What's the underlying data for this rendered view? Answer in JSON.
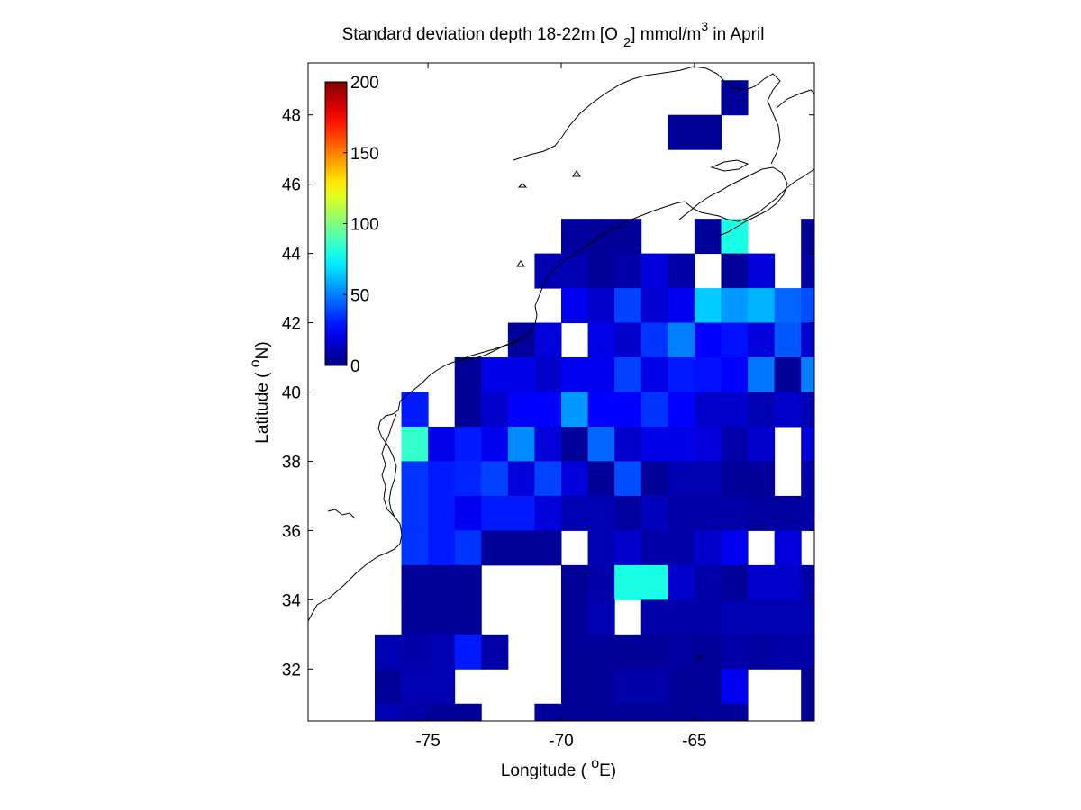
{
  "chart_data": {
    "type": "heatmap",
    "title": {
      "prefix": "Standard deviation depth 18-22m [O",
      "subscript": "2",
      "middle": "] mmol/m",
      "superscript": "3",
      "suffix": " in April"
    },
    "xlabel": {
      "prefix": "Longitude ( ",
      "degree": "o",
      "unit": "E)"
    },
    "ylabel": {
      "prefix": "Latitude ( ",
      "degree": "o",
      "unit": "N)"
    },
    "xlim": [
      -79.5,
      -60.5
    ],
    "ylim": [
      30.5,
      49.5
    ],
    "x_ticks": [
      {
        "value": -75,
        "label": "-75"
      },
      {
        "value": -70,
        "label": "-70"
      },
      {
        "value": -65,
        "label": "-65"
      }
    ],
    "y_ticks": [
      {
        "value": 32,
        "label": "32"
      },
      {
        "value": 34,
        "label": "34"
      },
      {
        "value": 36,
        "label": "36"
      },
      {
        "value": 38,
        "label": "38"
      },
      {
        "value": 40,
        "label": "40"
      },
      {
        "value": 42,
        "label": "42"
      },
      {
        "value": 44,
        "label": "44"
      },
      {
        "value": 46,
        "label": "46"
      },
      {
        "value": 48,
        "label": "48"
      }
    ],
    "colorbar": {
      "range": [
        0,
        200
      ],
      "colormap": "jet",
      "placement": "top-left inside axes",
      "ticks": [
        {
          "value": 0,
          "label": "0"
        },
        {
          "value": 50,
          "label": "50"
        },
        {
          "value": 100,
          "label": "100"
        },
        {
          "value": 150,
          "label": "150"
        },
        {
          "value": 200,
          "label": "200"
        }
      ]
    },
    "grid": false,
    "cell_size_degrees": 1,
    "lon_centers": [
      -79.5,
      -78.5,
      -77.5,
      -76.5,
      -75.5,
      -74.5,
      -73.5,
      -72.5,
      -71.5,
      -70.5,
      -69.5,
      -68.5,
      -67.5,
      -66.5,
      -65.5,
      -64.5,
      -63.5,
      -62.5,
      -61.5,
      -60.5
    ],
    "lat_centers": [
      48.5,
      47.5,
      44.5,
      43.5,
      42.5,
      41.5,
      40.5,
      39.5,
      38.5,
      37.5,
      36.5,
      35.5,
      34.5,
      33.5,
      32.5,
      31.5,
      30.5
    ],
    "rows": [
      [
        null,
        null,
        null,
        null,
        null,
        null,
        null,
        null,
        null,
        null,
        null,
        null,
        null,
        null,
        null,
        null,
        5,
        null,
        null,
        null
      ],
      [
        null,
        null,
        null,
        null,
        null,
        null,
        null,
        null,
        null,
        null,
        null,
        null,
        null,
        null,
        5,
        5,
        null,
        null,
        null,
        null
      ],
      [
        null,
        null,
        null,
        null,
        null,
        null,
        null,
        null,
        null,
        null,
        6,
        5,
        5,
        null,
        null,
        5,
        80,
        null,
        null,
        4
      ],
      [
        null,
        null,
        null,
        null,
        null,
        null,
        null,
        null,
        null,
        10,
        10,
        5,
        8,
        18,
        8,
        null,
        5,
        18,
        null,
        7
      ],
      [
        null,
        null,
        null,
        null,
        null,
        null,
        null,
        null,
        null,
        null,
        22,
        15,
        38,
        16,
        22,
        65,
        55,
        60,
        45,
        40
      ],
      [
        null,
        null,
        null,
        null,
        null,
        null,
        null,
        null,
        5,
        18,
        null,
        20,
        15,
        35,
        50,
        25,
        28,
        18,
        42,
        15
      ],
      [
        null,
        null,
        null,
        null,
        null,
        null,
        5,
        20,
        20,
        15,
        22,
        22,
        38,
        20,
        30,
        28,
        25,
        48,
        5,
        50
      ],
      [
        null,
        null,
        null,
        null,
        30,
        null,
        5,
        15,
        25,
        25,
        55,
        25,
        25,
        35,
        25,
        15,
        15,
        10,
        15,
        10
      ],
      [
        null,
        null,
        null,
        null,
        85,
        20,
        30,
        22,
        52,
        18,
        5,
        45,
        15,
        20,
        20,
        18,
        8,
        15,
        null,
        18
      ],
      [
        null,
        null,
        null,
        null,
        35,
        30,
        32,
        38,
        18,
        38,
        18,
        5,
        40,
        5,
        10,
        10,
        5,
        5,
        null,
        8
      ],
      [
        null,
        null,
        null,
        null,
        35,
        30,
        22,
        30,
        30,
        18,
        10,
        10,
        6,
        12,
        8,
        8,
        8,
        6,
        6,
        8
      ],
      [
        null,
        null,
        null,
        null,
        35,
        30,
        35,
        5,
        5,
        5,
        null,
        10,
        15,
        8,
        8,
        15,
        22,
        null,
        18,
        null
      ],
      [
        null,
        null,
        null,
        null,
        5,
        5,
        5,
        null,
        null,
        null,
        5,
        8,
        80,
        80,
        15,
        8,
        5,
        15,
        15,
        8
      ],
      [
        null,
        null,
        null,
        null,
        5,
        5,
        5,
        null,
        null,
        null,
        5,
        10,
        null,
        8,
        8,
        8,
        10,
        10,
        10,
        10
      ],
      [
        null,
        null,
        null,
        10,
        8,
        10,
        30,
        8,
        null,
        null,
        5,
        5,
        5,
        5,
        6,
        5,
        8,
        6,
        8,
        8
      ],
      [
        null,
        null,
        null,
        5,
        10,
        10,
        null,
        null,
        null,
        null,
        5,
        5,
        8,
        8,
        5,
        5,
        22,
        null,
        null,
        5
      ],
      [
        null,
        null,
        null,
        10,
        8,
        5,
        5,
        null,
        null,
        5,
        5,
        5,
        5,
        5,
        5,
        5,
        5,
        null,
        null,
        5
      ]
    ]
  }
}
